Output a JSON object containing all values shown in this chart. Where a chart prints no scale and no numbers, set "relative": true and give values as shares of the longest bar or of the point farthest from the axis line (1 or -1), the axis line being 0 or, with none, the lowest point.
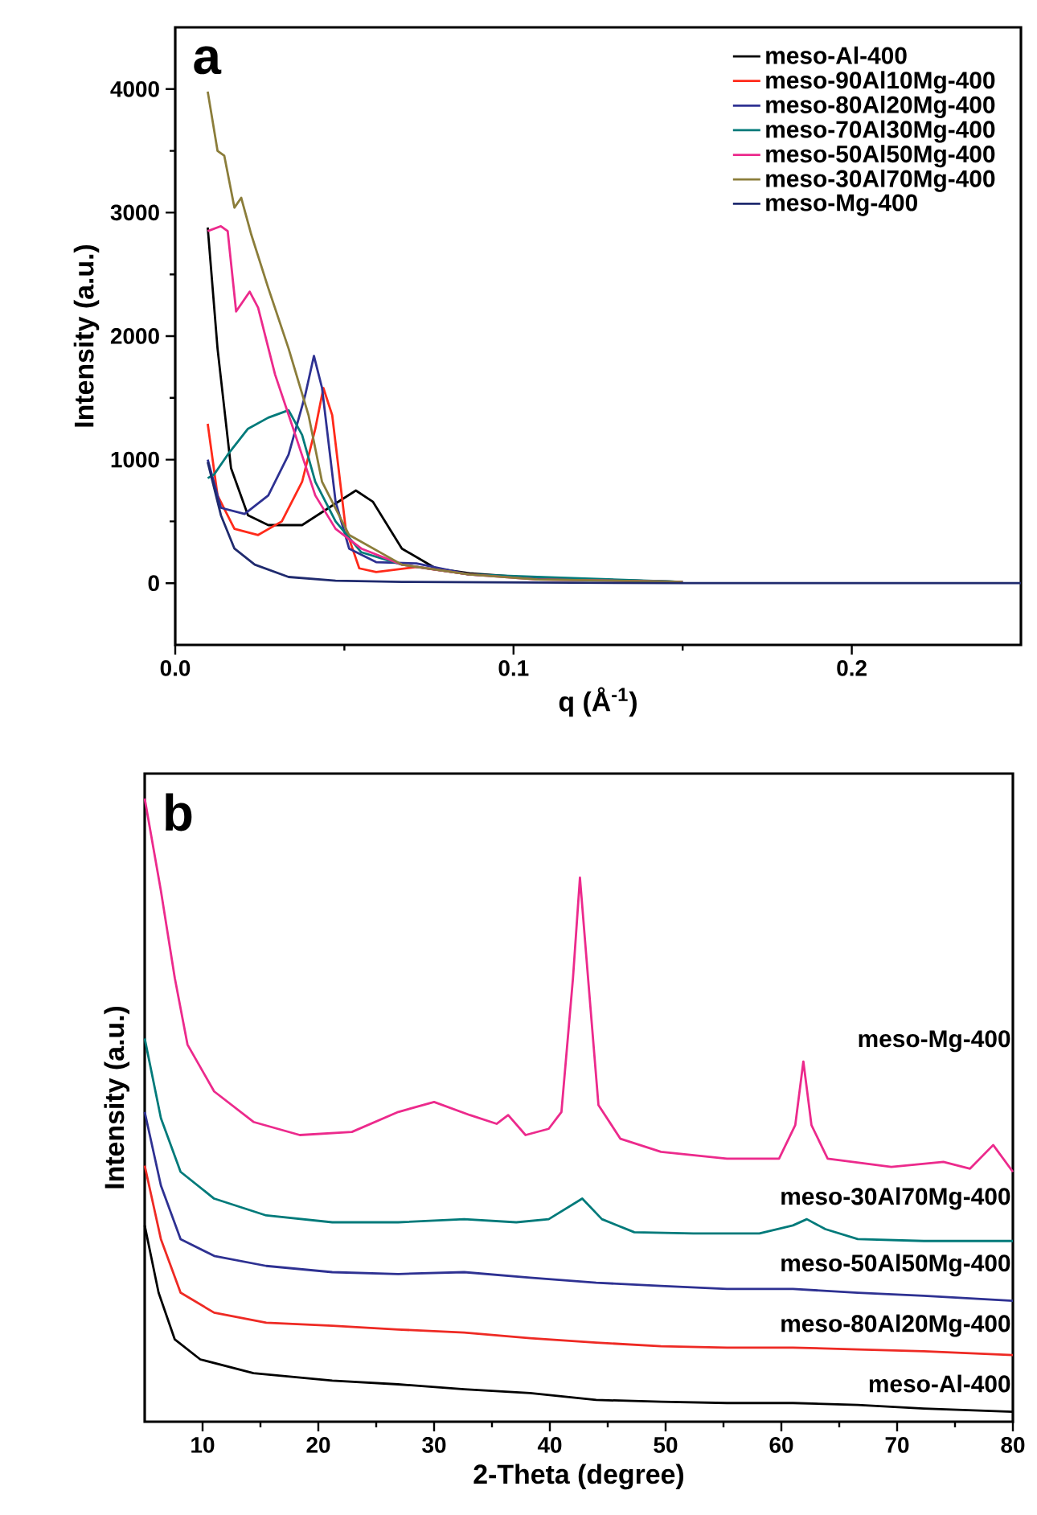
{
  "chart_data": [
    {
      "type": "line",
      "xlabel": "q (Å$^{-1}$)",
      "ylabel": "Intensity (a.u.)",
      "annotations": [
        "a"
      ],
      "legend": "top right",
      "line_style": "solid",
      "xlim": [
        0,
        0.25
      ],
      "xticks": [
        {
          "value": 0,
          "label": "0.0"
        },
        0.1,
        0.2
      ],
      "ylim": [
        -500,
        4500
      ],
      "yticks": [
        0,
        1000,
        2000,
        3000,
        4000
      ],
      "series": [
        {
          "name": "meso-Al-400",
          "color": "#000000",
          "x": [
            0.0096,
            0.0125,
            0.0165,
            0.0215,
            0.0275,
            0.0375,
            0.0454,
            0.0534,
            0.0584,
            0.067,
            0.077,
            0.087,
            0.107,
            0.15
          ],
          "values": [
            2880,
            1900,
            930,
            550,
            470,
            470,
            610,
            750,
            660,
            280,
            120,
            80,
            40,
            10
          ]
        },
        {
          "name": "meso-90Al10Mg-400",
          "color": "#ff2a1a",
          "x": [
            0.0096,
            0.0125,
            0.0175,
            0.0245,
            0.0315,
            0.0375,
            0.0414,
            0.0438,
            0.0464,
            0.0504,
            0.0544,
            0.0594,
            0.0713,
            0.087
          ],
          "values": [
            1290,
            710,
            440,
            390,
            500,
            820,
            1250,
            1580,
            1360,
            440,
            120,
            90,
            130,
            70
          ]
        },
        {
          "name": "meso-80Al20Mg-400",
          "color": "#2e3192",
          "x": [
            0.0096,
            0.0135,
            0.0205,
            0.0275,
            0.0335,
            0.0384,
            0.041,
            0.0434,
            0.0474,
            0.0514,
            0.0594,
            0.0713,
            0.087,
            0.107,
            0.15
          ],
          "values": [
            1000,
            610,
            560,
            710,
            1040,
            1520,
            1840,
            1580,
            660,
            280,
            170,
            160,
            70,
            40,
            10
          ]
        },
        {
          "name": "meso-70Al30Mg-400",
          "color": "#007a7a",
          "x": [
            0.0096,
            0.0115,
            0.0155,
            0.0215,
            0.0275,
            0.0335,
            0.0375,
            0.0414,
            0.0474,
            0.055,
            0.067,
            0.087,
            0.107,
            0.15
          ],
          "values": [
            850,
            880,
            1040,
            1250,
            1340,
            1400,
            1200,
            820,
            500,
            250,
            150,
            70,
            50,
            10
          ]
        },
        {
          "name": "meso-50Al50Mg-400",
          "color": "#ec2a8c",
          "x": [
            0.0096,
            0.0135,
            0.0155,
            0.018,
            0.022,
            0.0245,
            0.0295,
            0.0355,
            0.0414,
            0.0474,
            0.055,
            0.067,
            0.087,
            0.107,
            0.15
          ],
          "values": [
            2850,
            2890,
            2850,
            2200,
            2360,
            2230,
            1690,
            1200,
            710,
            440,
            280,
            150,
            70,
            30,
            10
          ]
        },
        {
          "name": "meso-30Al70Mg-400",
          "color": "#8b7d3a",
          "x": [
            0.0096,
            0.0125,
            0.0145,
            0.0175,
            0.0195,
            0.0225,
            0.0275,
            0.0335,
            0.0394,
            0.0434,
            0.0514,
            0.067,
            0.087,
            0.107,
            0.15
          ],
          "values": [
            3980,
            3500,
            3460,
            3040,
            3120,
            2820,
            2390,
            1900,
            1360,
            820,
            390,
            150,
            70,
            30,
            10
          ]
        },
        {
          "name": "meso-Mg-400",
          "color": "#1f2a6e",
          "x": [
            0.0096,
            0.0135,
            0.0175,
            0.0235,
            0.0335,
            0.0474,
            0.067,
            0.15,
            0.25
          ],
          "values": [
            980,
            550,
            280,
            150,
            50,
            20,
            10,
            0,
            0
          ]
        }
      ]
    },
    {
      "type": "line",
      "xlabel": "2-Theta (degree)",
      "ylabel": "Intensity (a.u.)",
      "annotations": [
        "b"
      ],
      "relative": true,
      "tick_labels": "x",
      "line_style": "solid",
      "xlim": [
        5,
        80
      ],
      "xticks": [
        10,
        20,
        30,
        40,
        50,
        60,
        70,
        80
      ],
      "series": [
        {
          "name": "meso-Al-400",
          "color": "#000000",
          "x": [
            5,
            6.2,
            7.6,
            9.8,
            14.4,
            21.2,
            26.9,
            32.6,
            38.3,
            44,
            49.6,
            55.3,
            61,
            66.6,
            72.3,
            80
          ],
          "values": [
            0.315,
            0.207,
            0.132,
            0.1,
            0.078,
            0.066,
            0.06,
            0.052,
            0.046,
            0.035,
            0.032,
            0.03,
            0.03,
            0.027,
            0.021,
            0.016
          ]
        },
        {
          "name": "meso-80Al20Mg-400",
          "color": "#ee2a24",
          "x": [
            5,
            6.4,
            8.1,
            11,
            15.5,
            21.2,
            26.9,
            32.6,
            38.3,
            44,
            49.6,
            55.3,
            61,
            66.6,
            72.3,
            80
          ],
          "values": [
            0.411,
            0.293,
            0.207,
            0.175,
            0.159,
            0.154,
            0.148,
            0.143,
            0.134,
            0.127,
            0.121,
            0.119,
            0.119,
            0.116,
            0.113,
            0.107
          ]
        },
        {
          "name": "meso-50Al50Mg-400",
          "color": "#2e3192",
          "x": [
            5,
            6.4,
            8.1,
            11,
            15.5,
            21.2,
            26.9,
            32.6,
            38.3,
            44,
            49.6,
            55.3,
            61,
            66.6,
            72.3,
            80
          ],
          "values": [
            0.497,
            0.379,
            0.293,
            0.266,
            0.25,
            0.24,
            0.237,
            0.24,
            0.231,
            0.223,
            0.218,
            0.213,
            0.213,
            0.207,
            0.202,
            0.194
          ]
        },
        {
          "name": "meso-30Al70Mg-400",
          "color": "#007a7a",
          "x": [
            5,
            6.4,
            8.1,
            11,
            15.5,
            21.2,
            26.9,
            32.6,
            37.1,
            39.9,
            42.8,
            44.5,
            47.3,
            52.4,
            58.1,
            61,
            62.2,
            63.8,
            66.6,
            72.3,
            80
          ],
          "values": [
            0.615,
            0.487,
            0.401,
            0.358,
            0.331,
            0.32,
            0.32,
            0.325,
            0.32,
            0.325,
            0.358,
            0.325,
            0.304,
            0.302,
            0.302,
            0.315,
            0.325,
            0.309,
            0.293,
            0.29,
            0.29
          ]
        },
        {
          "name": "meso-Mg-400",
          "color": "#ec2a8c",
          "x": [
            5,
            6.4,
            7.6,
            8.7,
            11,
            14.4,
            18.4,
            22.9,
            26.9,
            30,
            33.1,
            35.4,
            36.4,
            37.9,
            39.9,
            41,
            42,
            42.6,
            43.3,
            44.2,
            46.1,
            49.6,
            55.3,
            59.8,
            61.2,
            61.9,
            62.6,
            64,
            69.5,
            74,
            76.3,
            78.3,
            80
          ],
          "values": [
            1.0,
            0.852,
            0.712,
            0.605,
            0.53,
            0.481,
            0.46,
            0.465,
            0.497,
            0.513,
            0.492,
            0.478,
            0.492,
            0.46,
            0.47,
            0.497,
            0.712,
            0.873,
            0.712,
            0.508,
            0.454,
            0.433,
            0.422,
            0.422,
            0.476,
            0.578,
            0.476,
            0.422,
            0.409,
            0.417,
            0.406,
            0.444,
            0.401
          ]
        }
      ]
    }
  ]
}
